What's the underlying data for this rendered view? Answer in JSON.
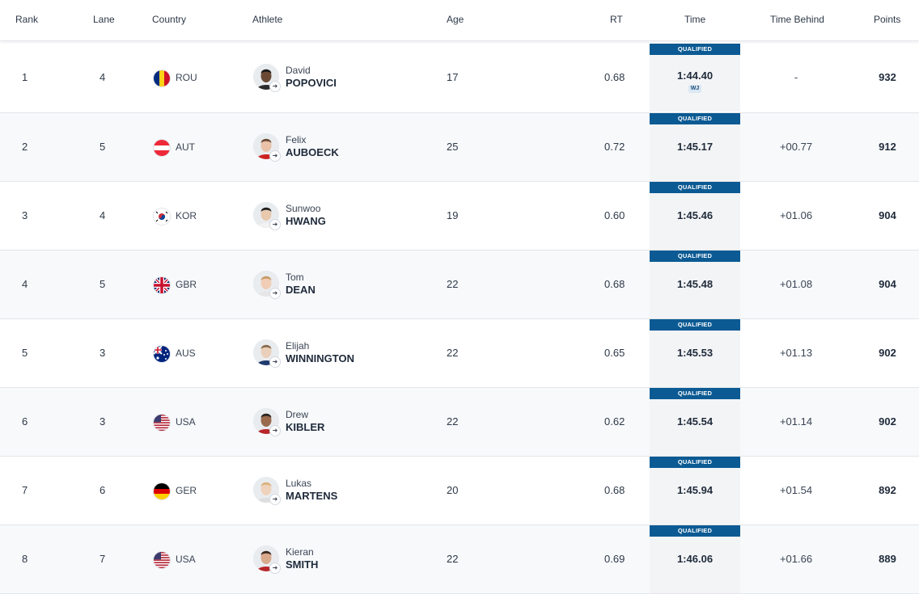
{
  "headers": {
    "rank": "Rank",
    "lane": "Lane",
    "country": "Country",
    "athlete": "Athlete",
    "age": "Age",
    "rt": "RT",
    "time": "Time",
    "time_behind": "Time Behind",
    "points": "Points"
  },
  "badge_label": "QUALIFIED",
  "rows": [
    {
      "rank": "1",
      "lane": "4",
      "country": "ROU",
      "flag": "romania-flag-icon",
      "first": "David",
      "last": "POPOVICI",
      "age": "17",
      "rt": "0.68",
      "time": "1:44.40",
      "record": "WJ",
      "behind": "-",
      "points": "932"
    },
    {
      "rank": "2",
      "lane": "5",
      "country": "AUT",
      "flag": "austria-flag-icon",
      "first": "Felix",
      "last": "AUBOECK",
      "age": "25",
      "rt": "0.72",
      "time": "1:45.17",
      "behind": "+00.77",
      "points": "912"
    },
    {
      "rank": "3",
      "lane": "4",
      "country": "KOR",
      "flag": "korea-flag-icon",
      "first": "Sunwoo",
      "last": "HWANG",
      "age": "19",
      "rt": "0.60",
      "time": "1:45.46",
      "behind": "+01.06",
      "points": "904"
    },
    {
      "rank": "4",
      "lane": "5",
      "country": "GBR",
      "flag": "uk-flag-icon",
      "first": "Tom",
      "last": "DEAN",
      "age": "22",
      "rt": "0.68",
      "time": "1:45.48",
      "behind": "+01.08",
      "points": "904"
    },
    {
      "rank": "5",
      "lane": "3",
      "country": "AUS",
      "flag": "australia-flag-icon",
      "first": "Elijah",
      "last": "WINNINGTON",
      "age": "22",
      "rt": "0.65",
      "time": "1:45.53",
      "behind": "+01.13",
      "points": "902"
    },
    {
      "rank": "6",
      "lane": "3",
      "country": "USA",
      "flag": "usa-flag-icon",
      "first": "Drew",
      "last": "KIBLER",
      "age": "22",
      "rt": "0.62",
      "time": "1:45.54",
      "behind": "+01.14",
      "points": "902"
    },
    {
      "rank": "7",
      "lane": "6",
      "country": "GER",
      "flag": "germany-flag-icon",
      "first": "Lukas",
      "last": "MARTENS",
      "age": "20",
      "rt": "0.68",
      "time": "1:45.94",
      "behind": "+01.54",
      "points": "892"
    },
    {
      "rank": "8",
      "lane": "7",
      "country": "USA",
      "flag": "usa-flag-icon",
      "first": "Kieran",
      "last": "SMITH",
      "age": "22",
      "rt": "0.69",
      "time": "1:46.06",
      "behind": "+01.66",
      "points": "889"
    }
  ],
  "colors": {
    "badge": "#0b5a93",
    "alt_row": "#f7f9fb",
    "time_cell": "#f3f4f6"
  }
}
